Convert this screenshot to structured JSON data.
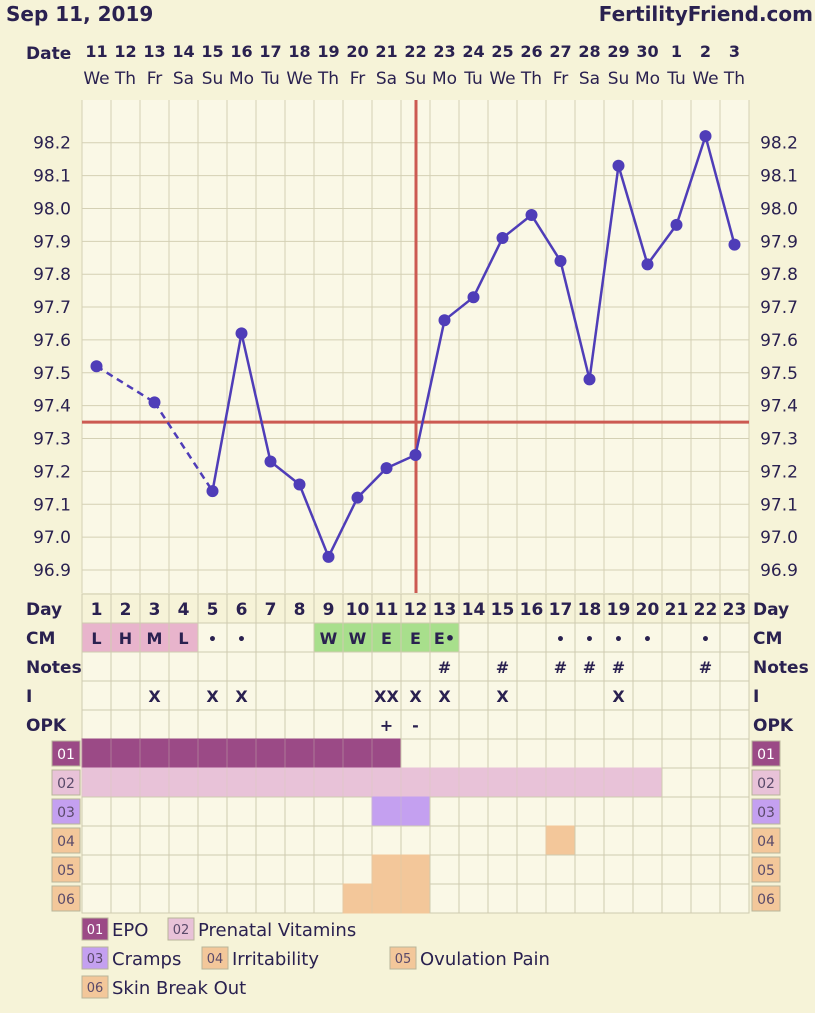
{
  "header": {
    "date": "Sep 11, 2019",
    "site": "FertilityFriend.com"
  },
  "captions": {
    "date": "Date",
    "day": "Day",
    "cm": "CM",
    "notes": "Notes",
    "i": "I",
    "opk": "OPK"
  },
  "columns": {
    "dates": [
      "11",
      "12",
      "13",
      "14",
      "15",
      "16",
      "17",
      "18",
      "19",
      "20",
      "21",
      "22",
      "23",
      "24",
      "25",
      "26",
      "27",
      "28",
      "29",
      "30",
      "1",
      "2",
      "3"
    ],
    "weekdays": [
      "We",
      "Th",
      "Fr",
      "Sa",
      "Su",
      "Mo",
      "Tu",
      "We",
      "Th",
      "Fr",
      "Sa",
      "Su",
      "Mo",
      "Tu",
      "We",
      "Th",
      "Fr",
      "Sa",
      "Su",
      "Mo",
      "Tu",
      "We",
      "Th"
    ],
    "days": [
      "1",
      "2",
      "3",
      "4",
      "5",
      "6",
      "7",
      "8",
      "9",
      "10",
      "11",
      "12",
      "13",
      "14",
      "15",
      "16",
      "17",
      "18",
      "19",
      "20",
      "21",
      "22",
      "23"
    ]
  },
  "chart_data": {
    "type": "line",
    "title": "",
    "xlabel": "Day",
    "ylabel": "",
    "ylim": [
      96.83,
      98.33
    ],
    "y_ticks": [
      "98.2",
      "98.1",
      "98.0",
      "97.9",
      "97.8",
      "97.7",
      "97.6",
      "97.5",
      "97.4",
      "97.3",
      "97.2",
      "97.1",
      "97.0",
      "96.9"
    ],
    "x": [
      1,
      2,
      3,
      4,
      5,
      6,
      7,
      8,
      9,
      10,
      11,
      12,
      13,
      14,
      15,
      16,
      17,
      18,
      19,
      20,
      21,
      22,
      23
    ],
    "series": [
      {
        "values": [
          97.52,
          null,
          97.41,
          null,
          97.14,
          97.62,
          97.23,
          97.16,
          96.94,
          97.12,
          97.21,
          97.25,
          97.66,
          97.73,
          97.91,
          97.98,
          97.84,
          97.48,
          98.13,
          97.83,
          97.95,
          98.22,
          97.89
        ]
      }
    ],
    "dashed_segments": [
      [
        1,
        3
      ],
      [
        3,
        5
      ]
    ],
    "coverline": 97.35,
    "ovulation_day": 12,
    "colors": {
      "line": "#4f3db8",
      "point": "#4f3db8",
      "coverline": "#cc5a52",
      "grid": "#d4d0b4",
      "plot_bg": "#faf8e6"
    }
  },
  "rows": {
    "cm": [
      "L",
      "H",
      "M",
      "L",
      "•",
      "•",
      "",
      "",
      "W",
      "W",
      "E",
      "E",
      "E•",
      "",
      "",
      "",
      "•",
      "•",
      "•",
      "•",
      "",
      "•",
      ""
    ],
    "cm_colors": [
      "pink",
      "pink",
      "pink",
      "pink",
      "",
      "",
      "",
      "",
      "green",
      "green",
      "green",
      "green",
      "green",
      "",
      "",
      "",
      "",
      "",
      "",
      "",
      "",
      "",
      ""
    ],
    "notes": [
      "",
      "",
      "",
      "",
      "",
      "",
      "",
      "",
      "",
      "",
      "",
      "",
      "#",
      "",
      "#",
      "",
      "#",
      "#",
      "#",
      "",
      "",
      "#",
      ""
    ],
    "i": [
      "",
      "",
      "X",
      "",
      "X",
      "X",
      "",
      "",
      "",
      "",
      "XX",
      "X",
      "X",
      "",
      "X",
      "",
      "",
      "",
      "X",
      "",
      "",
      "",
      ""
    ],
    "opk": [
      "",
      "",
      "",
      "",
      "",
      "",
      "",
      "",
      "",
      "",
      "+",
      "-",
      "",
      "",
      "",
      "",
      "",
      "",
      "",
      "",
      "",
      "",
      ""
    ]
  },
  "meds": [
    {
      "code": "01",
      "name": "EPO",
      "color": "#9b4a86",
      "text_color": "#ffffff",
      "days": [
        1,
        11
      ]
    },
    {
      "code": "02",
      "name": "Prenatal Vitamins",
      "color": "#e8c2d8",
      "text_color": "#5a4a6a",
      "days": [
        1,
        20
      ]
    },
    {
      "code": "03",
      "name": "Cramps",
      "color": "#c4a0f0",
      "text_color": "#5a4a6a",
      "days": [
        11,
        12
      ]
    },
    {
      "code": "04",
      "name": "Irritability",
      "color": "#f3c79a",
      "text_color": "#5a4a6a",
      "days": [
        17,
        17
      ]
    },
    {
      "code": "05",
      "name": "Ovulation Pain",
      "color": "#f3c79a",
      "text_color": "#5a4a6a",
      "days": [
        11,
        12
      ]
    },
    {
      "code": "06",
      "name": "Skin Break Out",
      "color": "#f3c79a",
      "text_color": "#5a4a6a",
      "days": [
        10,
        12
      ]
    }
  ]
}
